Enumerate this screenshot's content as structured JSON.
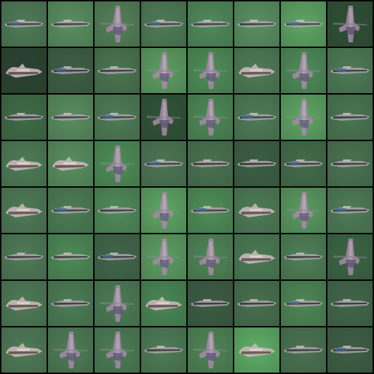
{
  "grid": {
    "rows": 8,
    "cols": 8,
    "tiles": [
      [
        "jet",
        "jet",
        "vertical",
        "jet",
        "jet",
        "jet",
        "jet",
        "vertical"
      ],
      [
        "bird",
        "jet",
        "jet",
        "vertical",
        "vertical",
        "bird",
        "vertical",
        "jet"
      ],
      [
        "jet",
        "jet",
        "jet",
        "vertical",
        "vertical",
        "jet",
        "vertical",
        "jet"
      ],
      [
        "bird",
        "bird",
        "vertical",
        "jet",
        "jet",
        "jet",
        "jet",
        "jet"
      ],
      [
        "bird",
        "jet",
        "jet",
        "vertical",
        "jet",
        "bird",
        "vertical",
        "jet"
      ],
      [
        "jet",
        "jet",
        "jet",
        "vertical",
        "vertical",
        "bird",
        "jet",
        "vertical"
      ],
      [
        "bird",
        "jet",
        "vertical",
        "bird",
        "jet",
        "jet",
        "jet",
        "jet"
      ],
      [
        "bird",
        "vertical",
        "vertical",
        "jet",
        "vertical",
        "bird",
        "jet",
        "jet"
      ]
    ],
    "backgrounds": [
      [
        "#4f7a57",
        "#5a8f60",
        "#547f58",
        "#4e7b56",
        "#4f8a5a",
        "#5a9062",
        "#5fa565",
        "#2f4d35"
      ],
      [
        "#2c4231",
        "#3e5e44",
        "#4a7450",
        "#5d9d63",
        "#4f8d58",
        "#4e7b56",
        "#4f8a59",
        "#4e7a56"
      ],
      [
        "#3f6b47",
        "#5a8d60",
        "#4f7b56",
        "#2f5237",
        "#4d8856",
        "#4e7b56",
        "#5fa565",
        "#4a7651"
      ],
      [
        "#4e7b56",
        "#5a8f60",
        "#4e8d57",
        "#4b7553",
        "#4a7150",
        "#3c5e43",
        "#436b4a",
        "#4a7251"
      ],
      [
        "#4f7a57",
        "#4d7c55",
        "#4f8a59",
        "#5fa565",
        "#4f8d58",
        "#4e7b56",
        "#5b9961",
        "#4f7b57"
      ],
      [
        "#4f7a57",
        "#4d8a57",
        "#41654a",
        "#5d9d63",
        "#4f8456",
        "#4b7a54",
        "#4e7f56",
        "#3a6443"
      ],
      [
        "#4f7a57",
        "#4d7c55",
        "#4c7b55",
        "#4a8755",
        "#3c5b42",
        "#476f4e",
        "#4e8656",
        "#41664a"
      ],
      [
        "#4f7a57",
        "#4e7b56",
        "#4d7c55",
        "#4e7b56",
        "#4f8456",
        "#5fae66",
        "#4a7251",
        "#3d5e44"
      ]
    ]
  }
}
